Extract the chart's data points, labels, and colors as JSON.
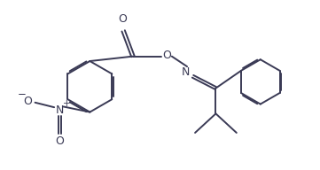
{
  "background_color": "#ffffff",
  "line_color": "#3a3a55",
  "line_width": 1.4,
  "text_color": "#3a3a55",
  "font_size": 8.5,
  "figsize": [
    3.61,
    1.92
  ],
  "dpi": 100,
  "xlim": [
    0,
    10
  ],
  "ylim": [
    0,
    5.3
  ]
}
